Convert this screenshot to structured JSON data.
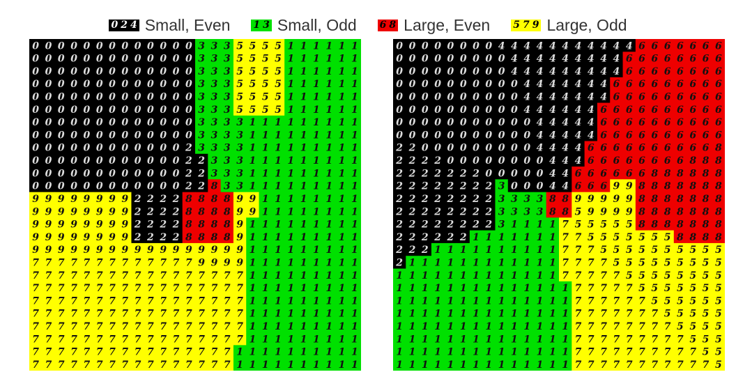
{
  "legend": {
    "items": [
      {
        "label": "Small, Even",
        "digits": [
          "0",
          "2",
          "4"
        ],
        "bg": "#000000",
        "fg": "#ffffff"
      },
      {
        "label": "Small, Odd",
        "digits": [
          "1",
          "3"
        ],
        "bg": "#00e000",
        "fg": "#000000"
      },
      {
        "label": "Large, Even",
        "digits": [
          "6",
          "8"
        ],
        "bg": "#ee0000",
        "fg": "#000000"
      },
      {
        "label": "Large, Odd",
        "digits": [
          "5",
          "7",
          "9"
        ],
        "bg": "#ffff00",
        "fg": "#000000"
      }
    ]
  },
  "colors": {
    "small_even": "#000000",
    "small_odd": "#00e000",
    "large_even": "#ee0000",
    "large_odd": "#ffff00"
  }
}
